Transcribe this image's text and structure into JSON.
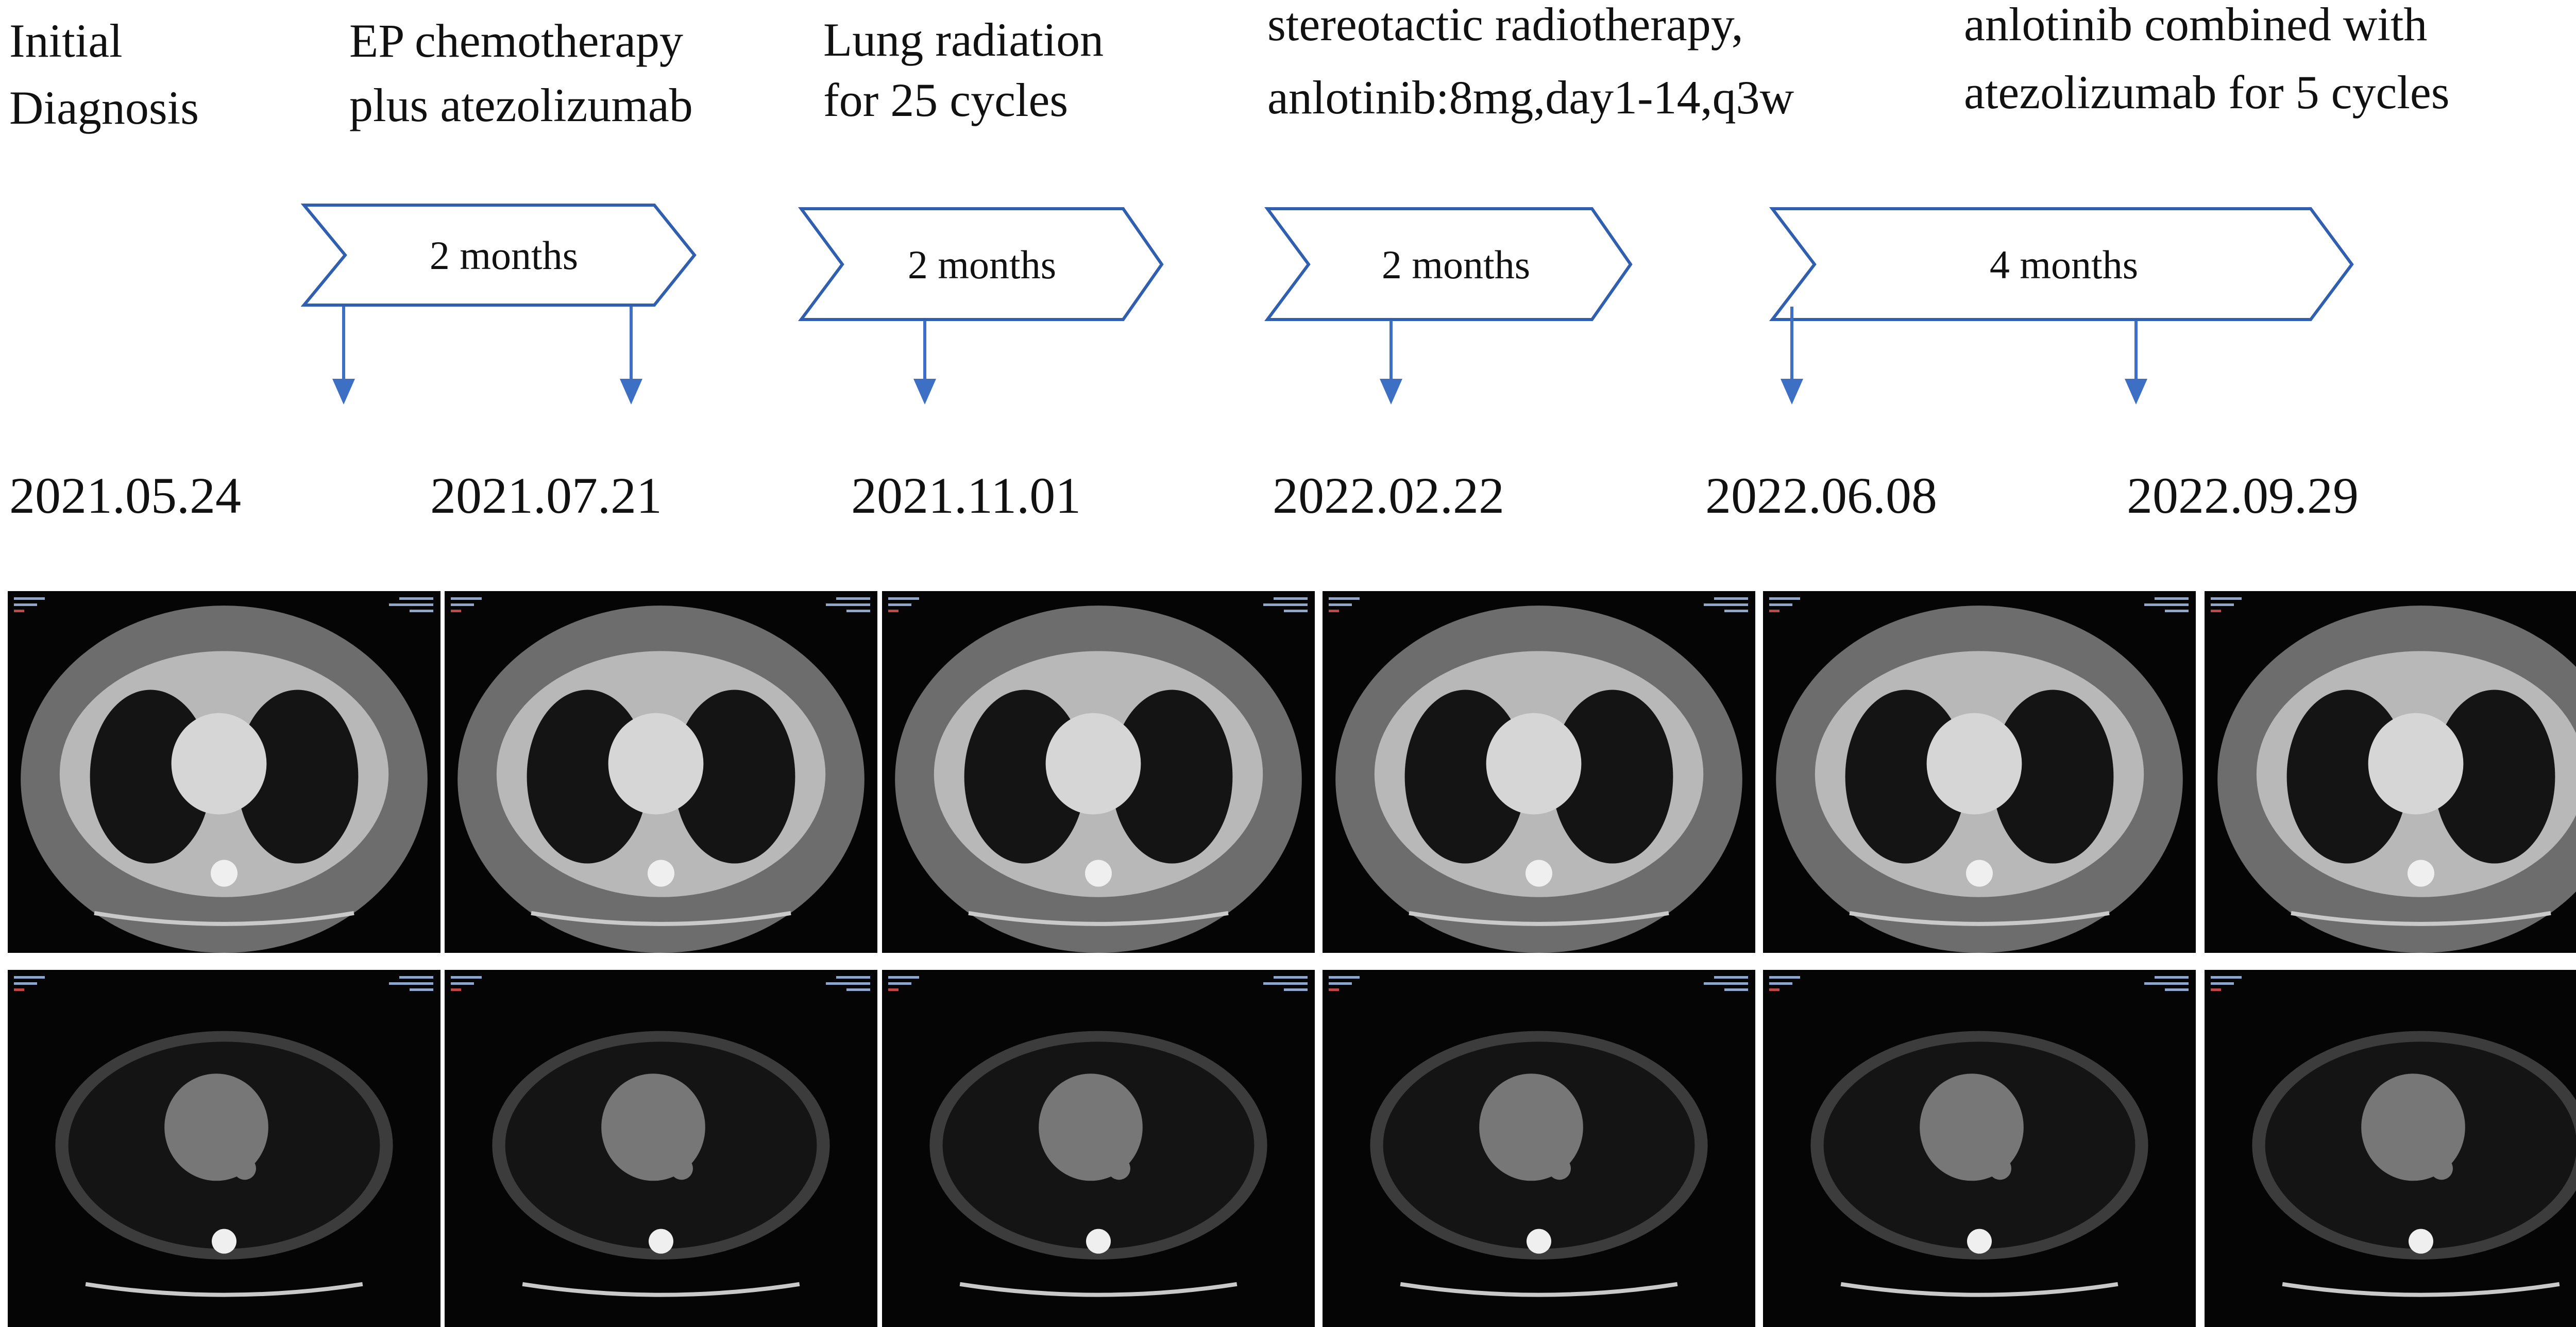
{
  "steps": [
    {
      "line1": "Initial",
      "line2": "Diagnosis"
    },
    {
      "line1": "EP chemotherapy",
      "line2": "plus atezolizumab"
    },
    {
      "line1": "Lung radiation",
      "line2": "for 25 cycles"
    },
    {
      "line1": "stereotactic radiotherapy,",
      "line2": "anlotinib:8mg,day1-14,q3w"
    },
    {
      "line1": "anlotinib combined with",
      "line2": "atezolizumab for 5 cycles"
    }
  ],
  "intervals": [
    "2 months",
    "2 months",
    "2 months",
    "4 months"
  ],
  "dates": [
    "2021.05.24",
    "2021.07.21",
    "2021.11.01",
    "2022.02.22",
    "2022.06.08",
    "2022.09.29"
  ],
  "colors": {
    "chevron_stroke": "#2f5fae",
    "arrow": "#3d6fc4",
    "scan_background": "#050505"
  },
  "scans": {
    "rows": [
      "lung-window",
      "mediastinal-window"
    ],
    "count_per_row": 6
  }
}
